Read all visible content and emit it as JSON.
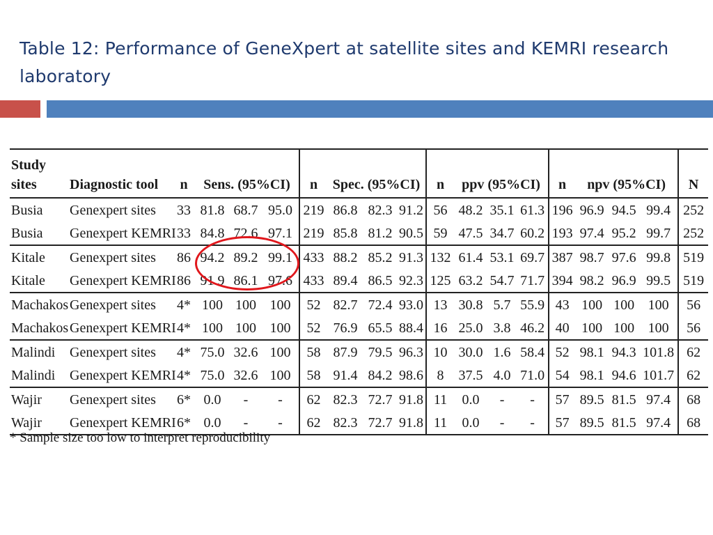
{
  "title": "Table 12: Performance of GeneXpert at satellite sites and KEMRI research laboratory",
  "colors": {
    "title": "#1f3a6e",
    "accent_red": "#c8514a",
    "accent_blue": "#4f81bd",
    "highlight_circle": "#e0171c"
  },
  "table": {
    "headers": {
      "site": "Study sites",
      "tool": "Diagnostic tool",
      "n1": "n",
      "sens": "Sens. (95%CI)",
      "n2": "n",
      "spec": "Spec. (95%CI)",
      "n3": "n",
      "ppv": "ppv (95%CI)",
      "n4": "n",
      "npv": "npv (95%CI)",
      "N": "N"
    },
    "rows": [
      [
        "Busia",
        "Genexpert sites",
        "33",
        "81.8",
        "68.7",
        "95.0",
        "219",
        "86.8",
        "82.3",
        "91.2",
        "56",
        "48.2",
        "35.1",
        "61.3",
        "196",
        "96.9",
        "94.5",
        "99.4",
        "252"
      ],
      [
        "Busia",
        "Genexpert KEMRI",
        "33",
        "84.8",
        "72.6",
        "97.1",
        "219",
        "85.8",
        "81.2",
        "90.5",
        "59",
        "47.5",
        "34.7",
        "60.2",
        "193",
        "97.4",
        "95.2",
        "99.7",
        "252"
      ],
      [
        "Kitale",
        "Genexpert sites",
        "86",
        "94.2",
        "89.2",
        "99.1",
        "433",
        "88.2",
        "85.2",
        "91.3",
        "132",
        "61.4",
        "53.1",
        "69.7",
        "387",
        "98.7",
        "97.6",
        "99.8",
        "519"
      ],
      [
        "Kitale",
        "Genexpert KEMRI",
        "86",
        "91.9",
        "86.1",
        "97.6",
        "433",
        "89.4",
        "86.5",
        "92.3",
        "125",
        "63.2",
        "54.7",
        "71.7",
        "394",
        "98.2",
        "96.9",
        "99.5",
        "519"
      ],
      [
        "Machakos",
        "Genexpert sites",
        "4*",
        "100",
        "100",
        "100",
        "52",
        "82.7",
        "72.4",
        "93.0",
        "13",
        "30.8",
        "5.7",
        "55.9",
        "43",
        "100",
        "100",
        "100",
        "56"
      ],
      [
        "Machakos",
        "Genexpert KEMRI",
        "4*",
        "100",
        "100",
        "100",
        "52",
        "76.9",
        "65.5",
        "88.4",
        "16",
        "25.0",
        "3.8",
        "46.2",
        "40",
        "100",
        "100",
        "100",
        "56"
      ],
      [
        "Malindi",
        "Genexpert sites",
        "4*",
        "75.0",
        "32.6",
        "100",
        "58",
        "87.9",
        "79.5",
        "96.3",
        "10",
        "30.0",
        "1.6",
        "58.4",
        "52",
        "98.1",
        "94.3",
        "101.8",
        "62"
      ],
      [
        "Malindi",
        "Genexpert KEMRI",
        "4*",
        "75.0",
        "32.6",
        "100",
        "58",
        "91.4",
        "84.2",
        "98.6",
        "8",
        "37.5",
        "4.0",
        "71.0",
        "54",
        "98.1",
        "94.6",
        "101.7",
        "62"
      ],
      [
        "Wajir",
        "Genexpert sites",
        "6*",
        "0.0",
        "-",
        "-",
        "62",
        "82.3",
        "72.7",
        "91.8",
        "11",
        "0.0",
        "-",
        "-",
        "57",
        "89.5",
        "81.5",
        "97.4",
        "68"
      ],
      [
        "Wajir",
        "Genexpert KEMRI",
        "6*",
        "0.0",
        "-",
        "-",
        "62",
        "82.3",
        "72.7",
        "91.8",
        "11",
        "0.0",
        "-",
        "-",
        "57",
        "89.5",
        "81.5",
        "97.4",
        "68"
      ]
    ]
  },
  "footnote": "* Sample size too low to interpret reproducibility"
}
